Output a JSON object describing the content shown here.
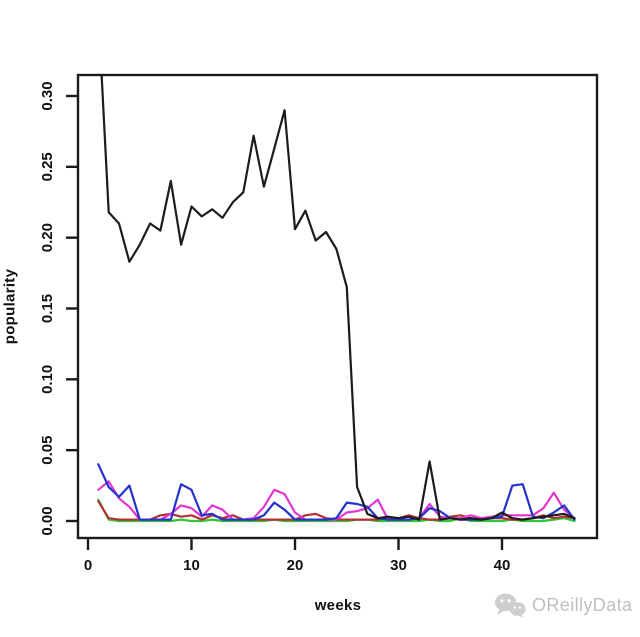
{
  "watermark": {
    "text": "OReillyData",
    "icon": "wechat-icon",
    "color": "#bdbdbd"
  },
  "axis_color": "#1a1a1a",
  "chart_data": {
    "type": "line",
    "title": "",
    "xlabel": "weeks",
    "ylabel": "popularity",
    "xlim": [
      0,
      47
    ],
    "ylim": [
      0,
      0.31
    ],
    "grid": false,
    "legend": "none",
    "x_ticks": [
      0,
      10,
      20,
      30,
      40
    ],
    "y_ticks": [
      0.0,
      0.05,
      0.1,
      0.15,
      0.2,
      0.25,
      0.3
    ],
    "y_tick_labels": [
      "0.00",
      "0.05",
      "0.10",
      "0.15",
      "0.20",
      "0.25",
      "0.30"
    ],
    "x": [
      1,
      2,
      3,
      4,
      5,
      6,
      7,
      8,
      9,
      10,
      11,
      12,
      13,
      14,
      15,
      16,
      17,
      18,
      19,
      20,
      21,
      22,
      23,
      24,
      25,
      26,
      27,
      28,
      29,
      30,
      31,
      32,
      33,
      34,
      35,
      36,
      37,
      38,
      39,
      40,
      41,
      42,
      43,
      44,
      45,
      46,
      47
    ],
    "series": [
      {
        "name": "black",
        "color": "#1c1c1c",
        "values": [
          0.36,
          0.218,
          0.21,
          0.183,
          0.195,
          0.21,
          0.205,
          0.24,
          0.195,
          0.222,
          0.215,
          0.22,
          0.214,
          0.225,
          0.232,
          0.272,
          0.236,
          0.263,
          0.29,
          0.206,
          0.219,
          0.198,
          0.204,
          0.192,
          0.165,
          0.024,
          0.005,
          0.002,
          0.003,
          0.002,
          0.003,
          0.001,
          0.042,
          0.001,
          0.002,
          0.001,
          0.002,
          0.001,
          0.002,
          0.006,
          0.002,
          0.001,
          0.002,
          0.003,
          0.004,
          0.005,
          0.002
        ]
      },
      {
        "name": "blue",
        "color": "#2333cc",
        "values": [
          0.04,
          0.024,
          0.017,
          0.025,
          0.001,
          0.001,
          0.001,
          0.001,
          0.026,
          0.022,
          0.004,
          0.005,
          0.001,
          0.001,
          0.001,
          0.001,
          0.004,
          0.013,
          0.008,
          0.001,
          0.001,
          0.001,
          0.001,
          0.002,
          0.013,
          0.012,
          0.01,
          0.002,
          0.001,
          0.001,
          0.001,
          0.002,
          0.009,
          0.007,
          0.002,
          0.001,
          0.001,
          0.001,
          0.002,
          0.003,
          0.025,
          0.026,
          0.003,
          0.002,
          0.006,
          0.011,
          0.001
        ]
      },
      {
        "name": "magenta",
        "color": "#e335d0",
        "values": [
          0.022,
          0.028,
          0.016,
          0.01,
          0.001,
          0.001,
          0.001,
          0.005,
          0.011,
          0.009,
          0.003,
          0.011,
          0.008,
          0.001,
          0.001,
          0.002,
          0.01,
          0.022,
          0.019,
          0.006,
          0.001,
          0.001,
          0.001,
          0.001,
          0.006,
          0.007,
          0.009,
          0.015,
          0.001,
          0.001,
          0.001,
          0.002,
          0.012,
          0.003,
          0.002,
          0.002,
          0.004,
          0.002,
          0.003,
          0.004,
          0.004,
          0.004,
          0.004,
          0.009,
          0.02,
          0.008,
          0.002
        ]
      },
      {
        "name": "red",
        "color": "#b23335",
        "values": [
          0.014,
          0.002,
          0.001,
          0.001,
          0.001,
          0.001,
          0.004,
          0.005,
          0.003,
          0.004,
          0.001,
          0.004,
          0.002,
          0.004,
          0.001,
          0.001,
          0.001,
          0.001,
          0.001,
          0.001,
          0.004,
          0.005,
          0.002,
          0.001,
          0.001,
          0.001,
          0.001,
          0.001,
          0.002,
          0.002,
          0.004,
          0.002,
          0.001,
          0.001,
          0.003,
          0.004,
          0.002,
          0.001,
          0.002,
          0.002,
          0.001,
          0.001,
          0.002,
          0.004,
          0.002,
          0.003,
          0.002
        ]
      },
      {
        "name": "green",
        "color": "#2fc832",
        "values": [
          0.015,
          0.001,
          0.0,
          0.0,
          0.0,
          0.0,
          0.0,
          0.0,
          0.001,
          0.0,
          0.0,
          0.001,
          0.0,
          0.0,
          0.0,
          0.0,
          0.0,
          0.001,
          0.0,
          0.0,
          0.0,
          0.0,
          0.0,
          0.0,
          0.0,
          0.001,
          0.001,
          0.0,
          0.0,
          0.0,
          0.0,
          0.0,
          0.001,
          0.0,
          0.0,
          0.002,
          0.0,
          0.0,
          0.0,
          0.0,
          0.001,
          0.0,
          0.0,
          0.0,
          0.001,
          0.002,
          0.0
        ]
      }
    ]
  }
}
